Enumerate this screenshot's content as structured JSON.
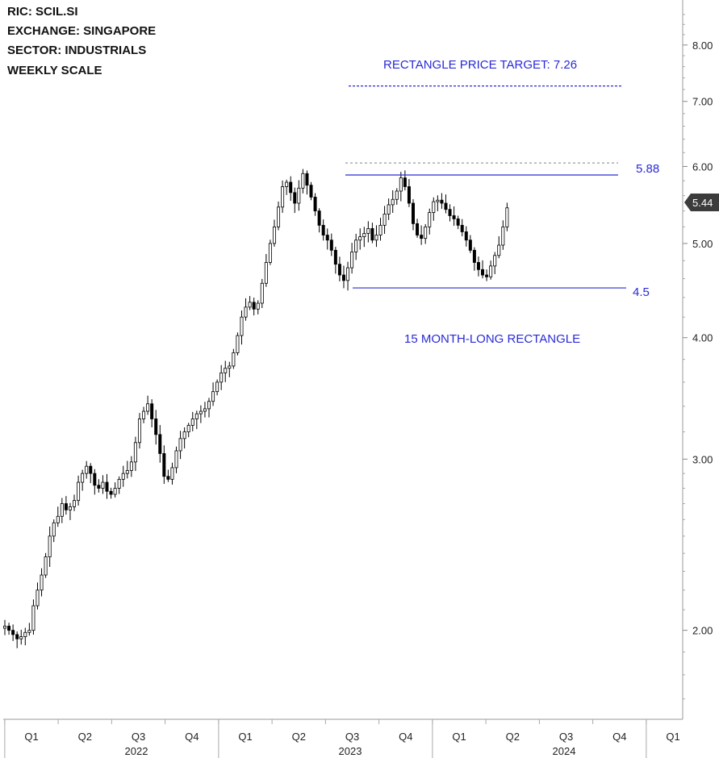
{
  "header": {
    "ric": "RIC:  SCIL.SI",
    "exchange": "EXCHANGE:  SINGAPORE",
    "sector": "SECTOR:  INDUSTRIALS",
    "scale": "WEEKLY SCALE"
  },
  "annotations": {
    "target_label": "RECTANGLE PRICE TARGET: 7.26",
    "resistance_label": "5.88",
    "support_label": "4.5",
    "pattern_label": "15 MONTH-LONG RECTANGLE",
    "last_price_label": "5.44"
  },
  "colors": {
    "annotation_blue": "#2a2ad8",
    "candle": "#000000",
    "previous_high_line": "#9a9a9a",
    "price_badge": "#3c3c3c"
  },
  "chart_data": {
    "type": "candlestick",
    "scale": "log",
    "frequency": "weekly",
    "ylim": [
      1.62,
      8.9
    ],
    "y_ticks": [
      "2.00",
      "3.00",
      "4.00",
      "5.00",
      "6.00",
      "7.00",
      "8.00"
    ],
    "quarter_ticks": [
      "Q1",
      "Q2",
      "Q3",
      "Q4",
      "Q1",
      "Q2",
      "Q3",
      "Q4",
      "Q1",
      "Q2",
      "Q3",
      "Q4",
      "Q1"
    ],
    "year_labels": [
      "2022",
      "2023",
      "2024"
    ],
    "levels": {
      "resistance": 5.88,
      "support": 4.5,
      "target": 7.26,
      "prior_high": 6.05,
      "last": 5.44
    },
    "series": [
      {
        "name": "",
        "close_path": [
          2.02,
          2.0,
          1.98,
          1.96,
          1.97,
          1.99,
          2.0,
          2.12,
          2.2,
          2.28,
          2.38,
          2.5,
          2.58,
          2.62,
          2.7,
          2.66,
          2.68,
          2.72,
          2.84,
          2.9,
          2.95,
          2.9,
          2.82,
          2.8,
          2.84,
          2.78,
          2.76,
          2.8,
          2.86,
          2.9,
          2.92,
          2.98,
          3.12,
          3.3,
          3.36,
          3.42,
          3.3,
          3.18,
          3.04,
          2.88,
          2.86,
          2.94,
          3.06,
          3.15,
          3.2,
          3.25,
          3.3,
          3.34,
          3.36,
          3.38,
          3.44,
          3.52,
          3.6,
          3.68,
          3.72,
          3.74,
          3.86,
          4.02,
          4.2,
          4.3,
          4.35,
          4.28,
          4.34,
          4.55,
          4.78,
          5.0,
          5.2,
          5.45,
          5.72,
          5.78,
          5.64,
          5.5,
          5.7,
          5.9,
          5.74,
          5.58,
          5.4,
          5.22,
          5.1,
          5.04,
          4.92,
          4.76,
          4.64,
          4.58,
          4.72,
          4.9,
          5.04,
          5.08,
          5.12,
          5.18,
          5.04,
          5.1,
          5.22,
          5.36,
          5.48,
          5.55,
          5.66,
          5.84,
          5.72,
          5.5,
          5.24,
          5.1,
          5.06,
          5.2,
          5.38,
          5.52,
          5.54,
          5.5,
          5.42,
          5.34,
          5.3,
          5.22,
          5.14,
          5.04,
          4.92,
          4.78,
          4.7,
          4.64,
          4.62,
          4.74,
          4.86,
          4.98,
          5.2,
          5.44
        ]
      }
    ]
  }
}
